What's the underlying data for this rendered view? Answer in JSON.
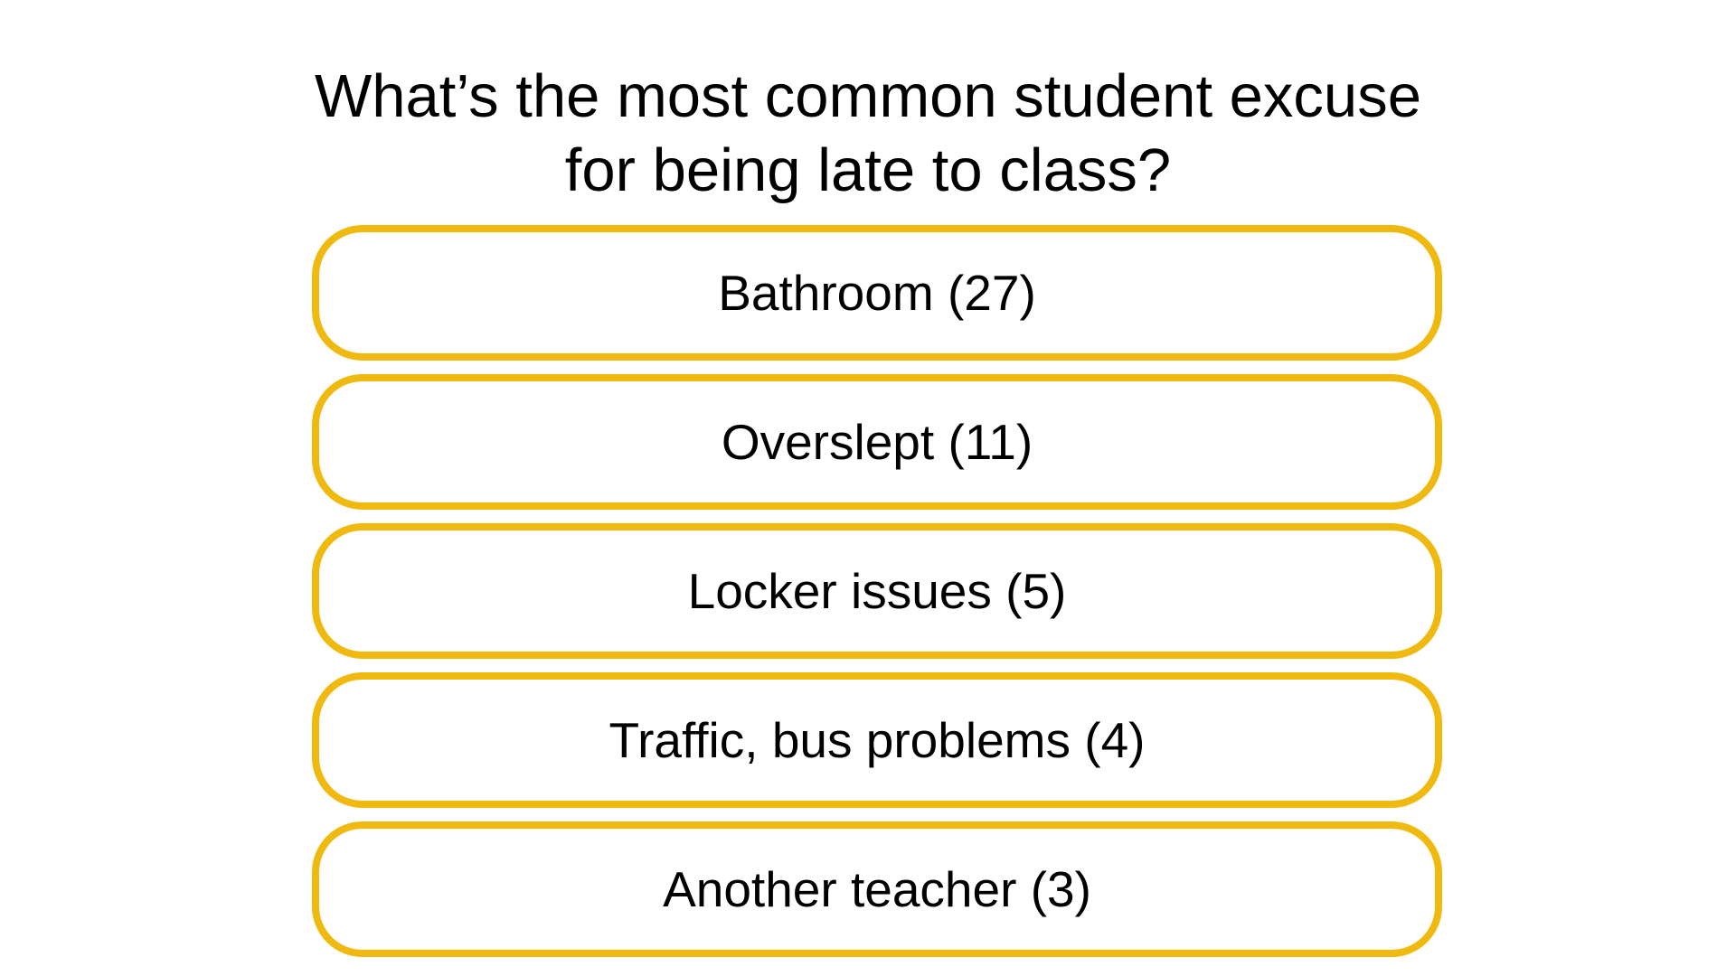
{
  "question": {
    "line1": "What’s the most common student excuse",
    "line2": "for being late to class?"
  },
  "answers": [
    {
      "label": "Bathroom (27)"
    },
    {
      "label": "Overslept (11)"
    },
    {
      "label": "Locker issues (5)"
    },
    {
      "label": "Traffic, bus problems (4)"
    },
    {
      "label": "Another teacher (3)"
    }
  ],
  "colors": {
    "answer_border": "#EFB90F",
    "text": "#000000",
    "background": "#FFFFFF"
  }
}
